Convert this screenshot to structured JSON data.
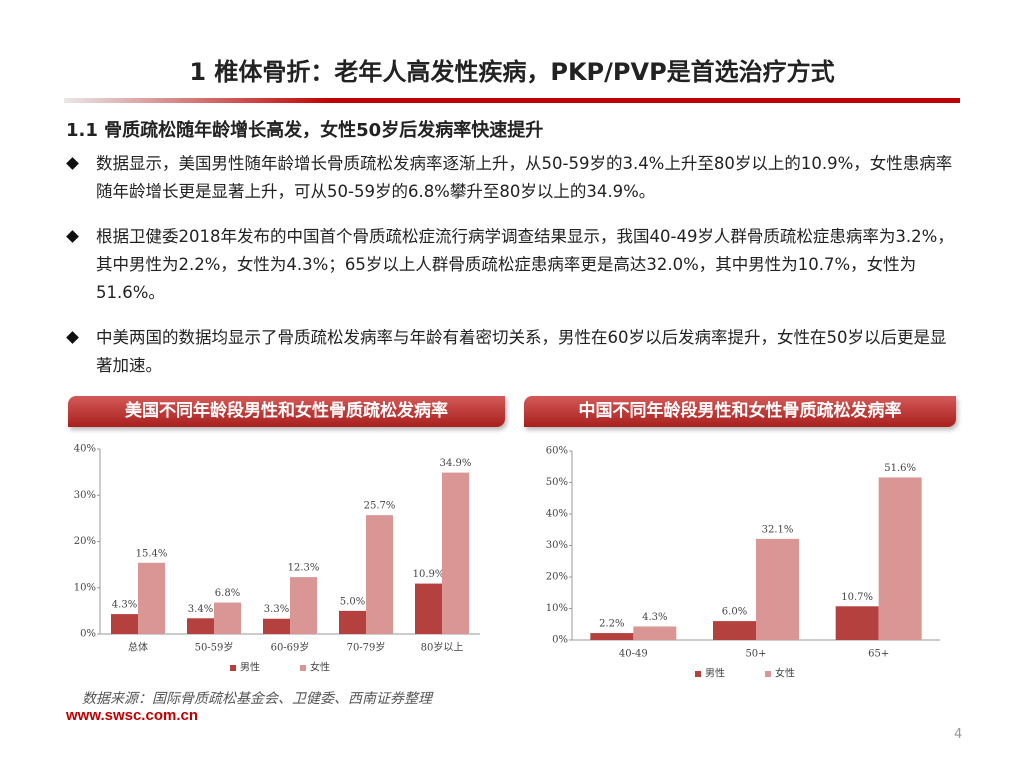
{
  "header": {
    "title": "1  椎体骨折：老年人高发性疾病，PKP/PVP是首选治疗方式",
    "subtitle": "1.1 骨质疏松随年龄增长高发，女性50岁后发病率快速提升"
  },
  "bullets": [
    "数据显示，美国男性随年龄增长骨质疏松发病率逐渐上升，从50-59岁的3.4%上升至80岁以上的10.9%，女性患病率随年龄增长更是显著上升，可从50-59岁的6.8%攀升至80岁以上的34.9%。",
    "根据卫健委2018年发布的中国首个骨质疏松症流行病学调查结果显示，我国40-49岁人群骨质疏松症患病率为3.2%，其中男性为2.2%，女性为4.3%；65岁以上人群骨质疏松症患病率更是高达32.0%，其中男性为10.7%，女性为51.6%。",
    "中美两国的数据均显示了骨质疏松发病率与年龄有着密切关系，男性在60岁以后发病率提升，女性在50岁以后更是显著加速。"
  ],
  "chart_data": [
    {
      "type": "bar",
      "title": "美国不同年龄段男性和女性骨质疏松发病率",
      "categories": [
        "总体",
        "50-59岁",
        "60-69岁",
        "70-79岁",
        "80岁以上"
      ],
      "series": [
        {
          "name": "男性",
          "color": "#b5413f",
          "values": [
            4.3,
            3.4,
            3.3,
            5.0,
            10.9
          ],
          "value_labels": [
            "4.3%",
            "3.4%",
            "3.3%",
            "5.0%",
            "10.9%"
          ]
        },
        {
          "name": "女性",
          "color": "#d99694",
          "values": [
            15.4,
            6.8,
            12.3,
            25.7,
            34.9
          ],
          "value_labels": [
            "15.4%",
            "6.8%",
            "12.3%",
            "25.7%",
            "34.9%"
          ]
        }
      ],
      "ylim": [
        0,
        40
      ],
      "yticks": [
        {
          "value": 0,
          "label": "0%"
        },
        {
          "value": 10,
          "label": "10%"
        },
        {
          "value": 20,
          "label": "20%"
        },
        {
          "value": 30,
          "label": "30%"
        },
        {
          "value": 40,
          "label": "40%"
        }
      ],
      "legend": "bottom"
    },
    {
      "type": "bar",
      "title": "中国不同年龄段男性和女性骨质疏松发病率",
      "categories": [
        "40-49",
        "50+",
        "65+"
      ],
      "series": [
        {
          "name": "男性",
          "color": "#b5413f",
          "values": [
            2.2,
            6.0,
            10.7
          ],
          "value_labels": [
            "2.2%",
            "6.0%",
            "10.7%"
          ]
        },
        {
          "name": "女性",
          "color": "#d99694",
          "values": [
            4.3,
            32.1,
            51.6
          ],
          "value_labels": [
            "4.3%",
            "32.1%",
            "51.6%"
          ]
        }
      ],
      "ylim": [
        0,
        60
      ],
      "yticks": [
        {
          "value": 0,
          "label": "0%"
        },
        {
          "value": 10,
          "label": "10%"
        },
        {
          "value": 20,
          "label": "20%"
        },
        {
          "value": 30,
          "label": "30%"
        },
        {
          "value": 40,
          "label": "40%"
        },
        {
          "value": 50,
          "label": "50%"
        },
        {
          "value": 60,
          "label": "60%"
        }
      ],
      "legend": "bottom"
    }
  ],
  "source": "数据来源：国际骨质疏松基金会、卫健委、西南证券整理",
  "footer": "www.swsc.com.cn",
  "page_number": "4"
}
